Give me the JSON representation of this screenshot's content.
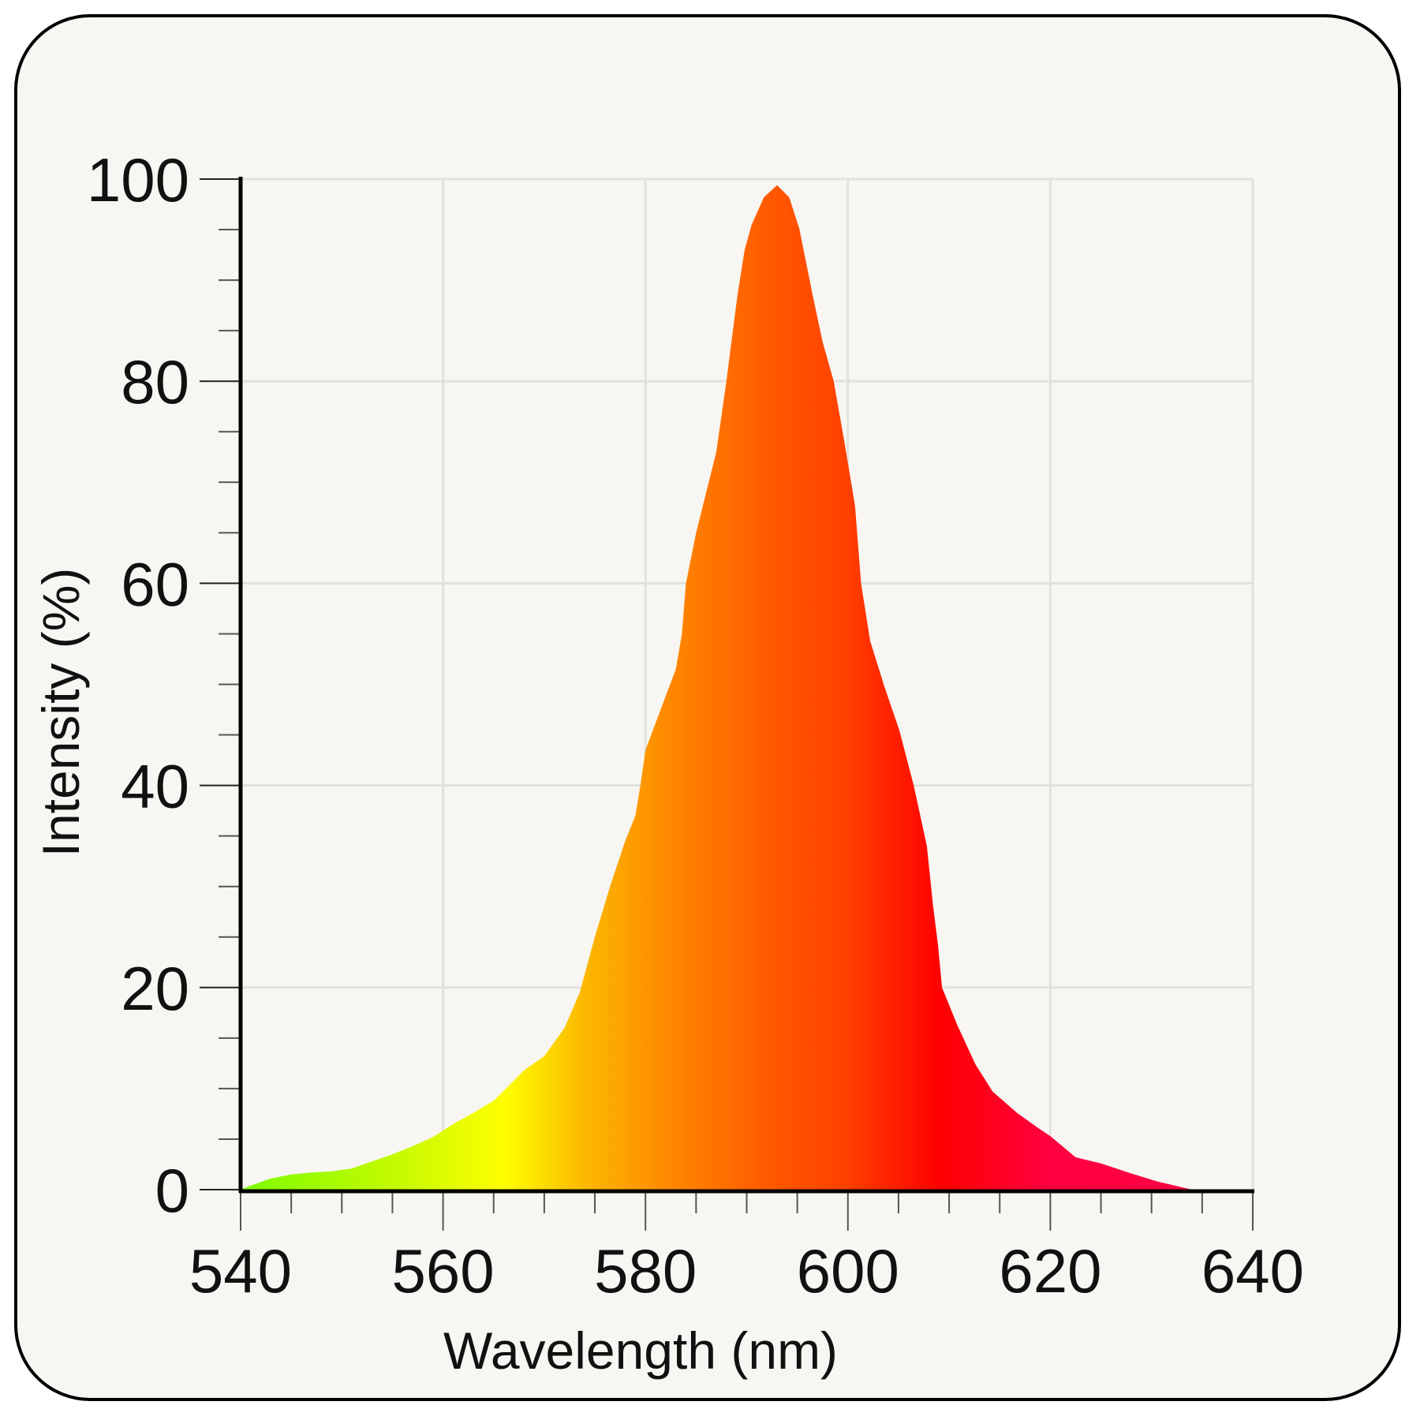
{
  "chart_data": {
    "type": "area",
    "title": "",
    "xlabel": "Wavelength (nm)",
    "ylabel": "Intensity (%)",
    "xlim": [
      540,
      640
    ],
    "ylim": [
      0,
      100
    ],
    "x_ticks": [
      540,
      560,
      580,
      600,
      620,
      640
    ],
    "y_ticks": [
      0,
      20,
      40,
      60,
      80,
      100
    ],
    "x_minor_step": 5,
    "y_minor_step": 5,
    "grid": true,
    "legend": null,
    "fill": "spectral gradient (wavelength-colored)",
    "gradient_stops": [
      {
        "nm": 540,
        "color": "#7cfc00"
      },
      {
        "nm": 556,
        "color": "#c8fa00"
      },
      {
        "nm": 566,
        "color": "#ffff00"
      },
      {
        "nm": 574,
        "color": "#fbb800"
      },
      {
        "nm": 582,
        "color": "#ff8a00"
      },
      {
        "nm": 592,
        "color": "#ff5a00"
      },
      {
        "nm": 600,
        "color": "#ff4000"
      },
      {
        "nm": 609,
        "color": "#ff0000"
      },
      {
        "nm": 620,
        "color": "#ff0040"
      },
      {
        "nm": 640,
        "color": "#ff0044"
      }
    ],
    "x": [
      540,
      541,
      543,
      545,
      547,
      549,
      551,
      553,
      555,
      557,
      559,
      561,
      563,
      565,
      566.5,
      568,
      570,
      572,
      573.5,
      575,
      576.5,
      578,
      579,
      579.5,
      580,
      581.5,
      583,
      583.6,
      584,
      585,
      586,
      587,
      588,
      588.5,
      589.1,
      589.8,
      590.5,
      591.7,
      593,
      594.2,
      595.2,
      596.5,
      597.5,
      598.6,
      599.7,
      600.7,
      601.3,
      602.2,
      603.6,
      605.1,
      606.5,
      607.8,
      608.4,
      608.9,
      609.3,
      610.8,
      612.6,
      614.3,
      616.7,
      618.8,
      620,
      622.5,
      625,
      628,
      630.6,
      634
    ],
    "values": [
      0,
      0.4,
      1.1,
      1.5,
      1.7,
      1.8,
      2.1,
      2.8,
      3.5,
      4.3,
      5.2,
      6.5,
      7.6,
      8.8,
      10.3,
      11.8,
      13.2,
      16,
      19.5,
      25,
      30,
      34.5,
      37,
      40,
      43.5,
      47.5,
      51.5,
      55,
      60,
      65,
      69,
      73,
      80,
      84,
      88.6,
      93,
      95.5,
      98.2,
      99.4,
      98.2,
      95.1,
      88.6,
      83.9,
      80,
      73.7,
      67.7,
      60,
      54.3,
      49.8,
      45.4,
      40,
      34,
      28.2,
      24.2,
      20,
      16.3,
      12.4,
      9.7,
      7.6,
      6.1,
      5.3,
      3.2,
      2.6,
      1.6,
      0.8,
      0
    ],
    "peak": {
      "wavelength_nm": 593,
      "intensity_pct": 99.4
    }
  },
  "axes": {
    "x_title": "Wavelength (nm)",
    "y_title": "Intensity (%)",
    "x_tick_labels": [
      "540",
      "560",
      "580",
      "600",
      "620",
      "640"
    ],
    "y_tick_labels": [
      "0",
      "20",
      "40",
      "60",
      "80",
      "100"
    ]
  },
  "colors": {
    "background": "#f7f6f2",
    "card_border": "#000000",
    "gridline": "#e2e1dd",
    "axis": "#000000",
    "tick": "#555555",
    "text": "#111111"
  }
}
